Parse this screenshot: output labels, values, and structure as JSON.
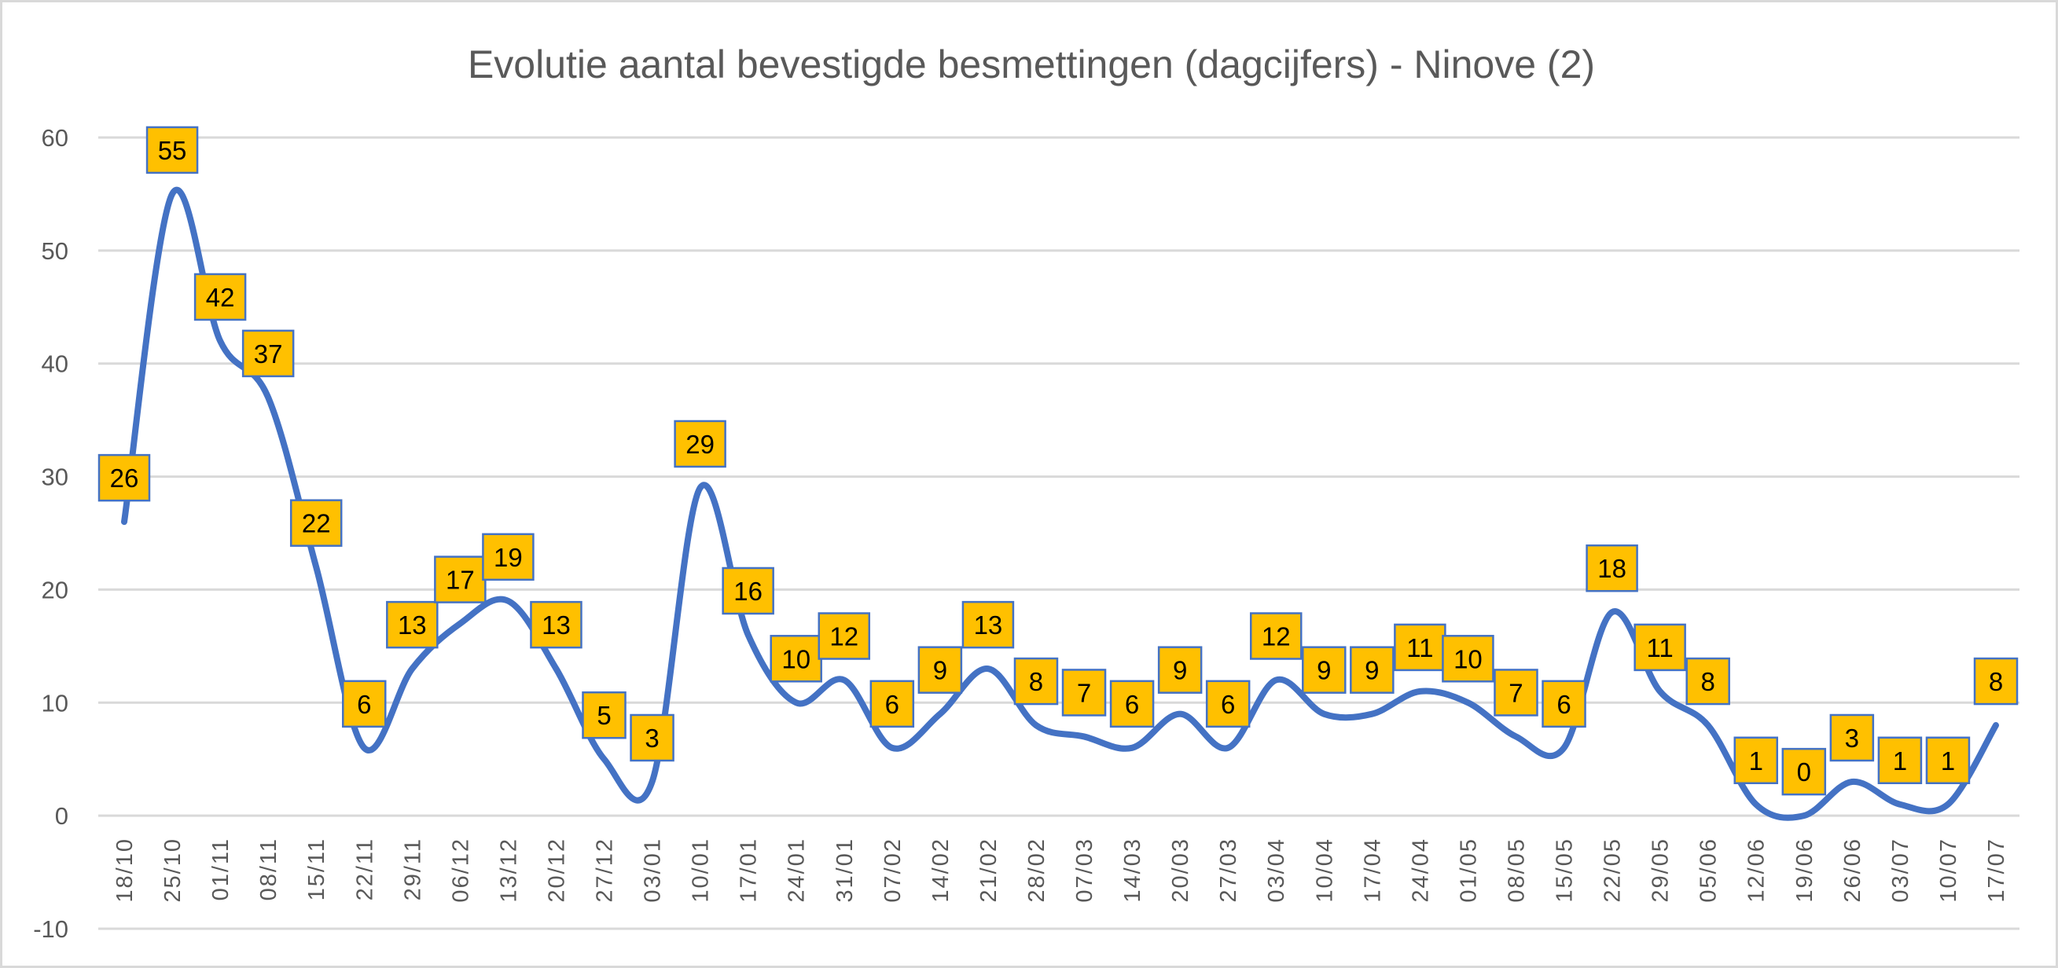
{
  "chart_data": {
    "type": "line",
    "title": "Evolutie aantal bevestigde besmettingen (dagcijfers) - Ninove (2)",
    "xlabel": "",
    "ylabel": "",
    "ylim": [
      -10,
      60
    ],
    "yticks": [
      -10,
      0,
      10,
      20,
      30,
      40,
      50,
      60
    ],
    "grid": true,
    "smoothed": true,
    "categories": [
      "18/10",
      "25/10",
      "01/11",
      "08/11",
      "15/11",
      "22/11",
      "29/11",
      "06/12",
      "13/12",
      "20/12",
      "27/12",
      "03/01",
      "10/01",
      "17/01",
      "24/01",
      "31/01",
      "07/02",
      "14/02",
      "21/02",
      "28/02",
      "07/03",
      "14/03",
      "20/03",
      "27/03",
      "03/04",
      "10/04",
      "17/04",
      "24/04",
      "01/05",
      "08/05",
      "15/05",
      "22/05",
      "29/05",
      "05/06",
      "12/06",
      "19/06",
      "26/06",
      "03/07",
      "10/07",
      "17/07"
    ],
    "series": [
      {
        "name": "Ninove",
        "values": [
          26,
          55,
          42,
          37,
          22,
          6,
          13,
          17,
          19,
          13,
          5,
          3,
          29,
          16,
          10,
          12,
          6,
          9,
          13,
          8,
          7,
          6,
          9,
          6,
          12,
          9,
          9,
          11,
          10,
          7,
          6,
          18,
          11,
          8,
          1,
          0,
          3,
          1,
          1,
          8
        ]
      }
    ],
    "colors": {
      "line": "#4472C4",
      "label_fill": "#FFC000",
      "label_border": "#4472C4",
      "grid": "#D9D9D9",
      "text": "#595959"
    }
  }
}
